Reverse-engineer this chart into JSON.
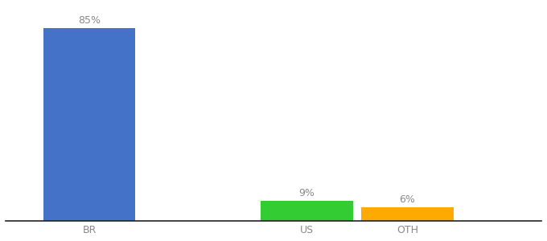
{
  "categories": [
    "BR",
    "US",
    "OTH"
  ],
  "values": [
    85,
    9,
    6
  ],
  "labels": [
    "85%",
    "9%",
    "6%"
  ],
  "bar_colors": [
    "#4472c8",
    "#33cc33",
    "#ffaa00"
  ],
  "background_color": "#ffffff",
  "text_color": "#888888",
  "label_fontsize": 9,
  "tick_fontsize": 9,
  "ylim": [
    0,
    95
  ],
  "bar_width": 0.55,
  "x_positions": [
    0,
    1.3,
    1.9
  ],
  "xlim": [
    -0.5,
    2.7
  ],
  "figsize": [
    6.8,
    3.0
  ],
  "dpi": 100
}
